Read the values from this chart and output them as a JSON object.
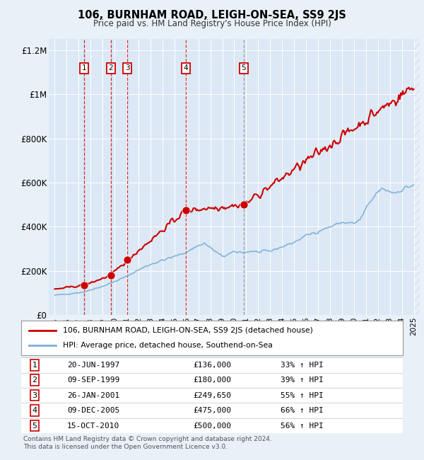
{
  "title": "106, BURNHAM ROAD, LEIGH-ON-SEA, SS9 2JS",
  "subtitle": "Price paid vs. HM Land Registry's House Price Index (HPI)",
  "legend_line1": "106, BURNHAM ROAD, LEIGH-ON-SEA, SS9 2JS (detached house)",
  "legend_line2": "HPI: Average price, detached house, Southend-on-Sea",
  "footnote1": "Contains HM Land Registry data © Crown copyright and database right 2024.",
  "footnote2": "This data is licensed under the Open Government Licence v3.0.",
  "transactions": [
    {
      "num": 1,
      "date": "20-JUN-1997",
      "price": 136000,
      "hpi_pct": "33%",
      "direction": "↑"
    },
    {
      "num": 2,
      "date": "09-SEP-1999",
      "price": 180000,
      "hpi_pct": "39%",
      "direction": "↑"
    },
    {
      "num": 3,
      "date": "26-JAN-2001",
      "price": 249650,
      "hpi_pct": "55%",
      "direction": "↑"
    },
    {
      "num": 4,
      "date": "09-DEC-2005",
      "price": 475000,
      "hpi_pct": "66%",
      "direction": "↑"
    },
    {
      "num": 5,
      "date": "15-OCT-2010",
      "price": 500000,
      "hpi_pct": "56%",
      "direction": "↑"
    }
  ],
  "transaction_years": [
    1997.47,
    1999.69,
    2001.07,
    2005.94,
    2010.79
  ],
  "transaction_prices": [
    136000,
    180000,
    249650,
    475000,
    500000
  ],
  "background_color": "#e8f0f8",
  "plot_bg_color": "#dce8f5",
  "red_color": "#cc0000",
  "blue_color": "#7bafd4",
  "ylim": [
    0,
    1250000
  ],
  "xlim": [
    1994.5,
    2025.5
  ],
  "ylabel_ticks": [
    0,
    200000,
    400000,
    600000,
    800000,
    1000000,
    1200000
  ],
  "ylabel_labels": [
    "£0",
    "£200K",
    "£400K",
    "£600K",
    "£800K",
    "£1M",
    "£1.2M"
  ],
  "x_ticks": [
    1995,
    1996,
    1997,
    1998,
    1999,
    2000,
    2001,
    2002,
    2003,
    2004,
    2005,
    2006,
    2007,
    2008,
    2009,
    2010,
    2011,
    2012,
    2013,
    2014,
    2015,
    2016,
    2017,
    2018,
    2019,
    2020,
    2021,
    2022,
    2023,
    2024,
    2025
  ]
}
